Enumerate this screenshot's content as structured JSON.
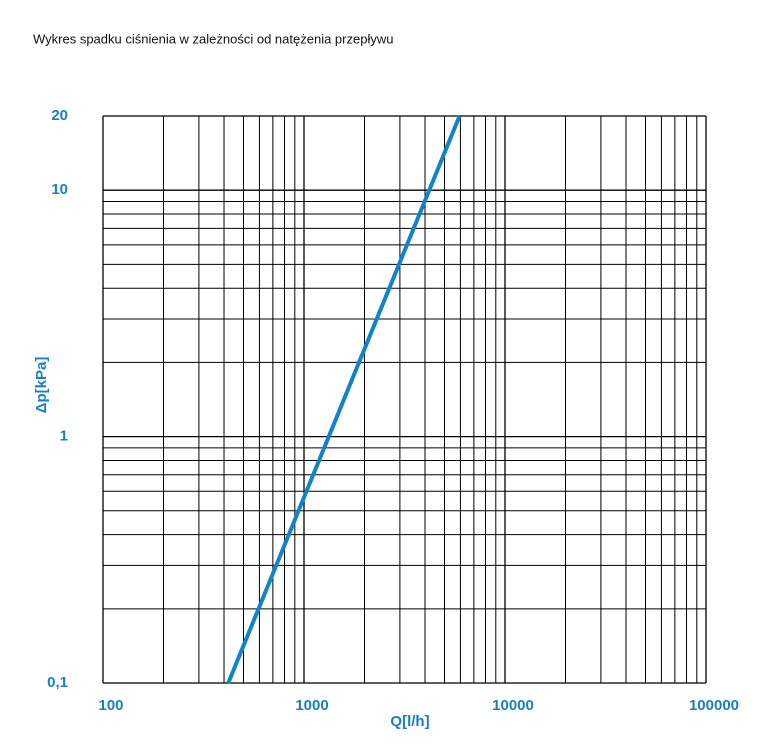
{
  "chart_data": {
    "type": "line",
    "title": "Wykres spadku ciśnienia w zależności od natężenia przepływu",
    "x_label": "Q[l/h]",
    "y_label": "Δp[kPa]",
    "x": [
      420,
      5940
    ],
    "values": [
      0.1,
      20
    ],
    "color": "#1283c6",
    "xlim": [
      100,
      100000
    ],
    "ylim": [
      0.1,
      20
    ],
    "xticks": [
      100,
      1000,
      10000,
      100000
    ],
    "yticks": [
      {
        "value": 0.1,
        "label": "0,1"
      },
      1,
      10,
      20
    ],
    "xscale": "log",
    "yscale": "log",
    "grid": true
  }
}
